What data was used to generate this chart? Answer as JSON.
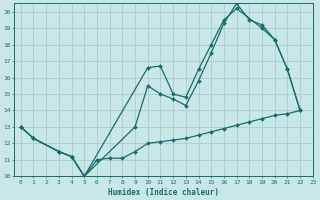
{
  "xlabel": "Humidex (Indice chaleur)",
  "xlim": [
    -0.5,
    23
  ],
  "ylim": [
    10,
    20.5
  ],
  "yticks": [
    10,
    11,
    12,
    13,
    14,
    15,
    16,
    17,
    18,
    19,
    20
  ],
  "xticks": [
    0,
    1,
    2,
    3,
    4,
    5,
    6,
    7,
    8,
    9,
    10,
    11,
    12,
    13,
    14,
    15,
    16,
    17,
    18,
    19,
    20,
    21,
    22,
    23
  ],
  "bg_color": "#c8e8e8",
  "grid_color": "#aacccc",
  "line_color": "#1a6b6b",
  "series1": {
    "x": [
      0,
      1,
      3,
      4,
      5,
      10,
      11,
      12,
      13,
      14,
      15,
      16,
      17,
      19,
      20,
      21,
      22
    ],
    "y": [
      13,
      12.3,
      11.5,
      11.2,
      10.0,
      16.6,
      16.7,
      15.0,
      14.8,
      16.5,
      18.0,
      19.5,
      20.2,
      19.0,
      18.3,
      16.5,
      14.0
    ]
  },
  "series2": {
    "x": [
      0,
      1,
      3,
      4,
      5,
      9,
      10,
      11,
      12,
      13,
      14,
      15,
      16,
      17,
      18,
      19,
      20,
      21,
      22
    ],
    "y": [
      13,
      12.3,
      11.5,
      11.2,
      10.0,
      13.0,
      15.5,
      15.0,
      14.7,
      14.3,
      15.8,
      17.5,
      19.3,
      20.5,
      19.5,
      19.2,
      18.3,
      16.5,
      14.0
    ]
  },
  "series3": {
    "x": [
      0,
      1,
      3,
      4,
      5,
      6,
      7,
      8,
      9,
      10,
      11,
      12,
      13,
      14,
      15,
      16,
      17,
      18,
      19,
      20,
      21,
      22
    ],
    "y": [
      13,
      12.3,
      11.5,
      11.2,
      10.0,
      11.0,
      11.1,
      11.1,
      11.5,
      12.0,
      12.1,
      12.2,
      12.3,
      12.5,
      12.7,
      12.9,
      13.1,
      13.3,
      13.5,
      13.7,
      13.8,
      14.0
    ]
  }
}
